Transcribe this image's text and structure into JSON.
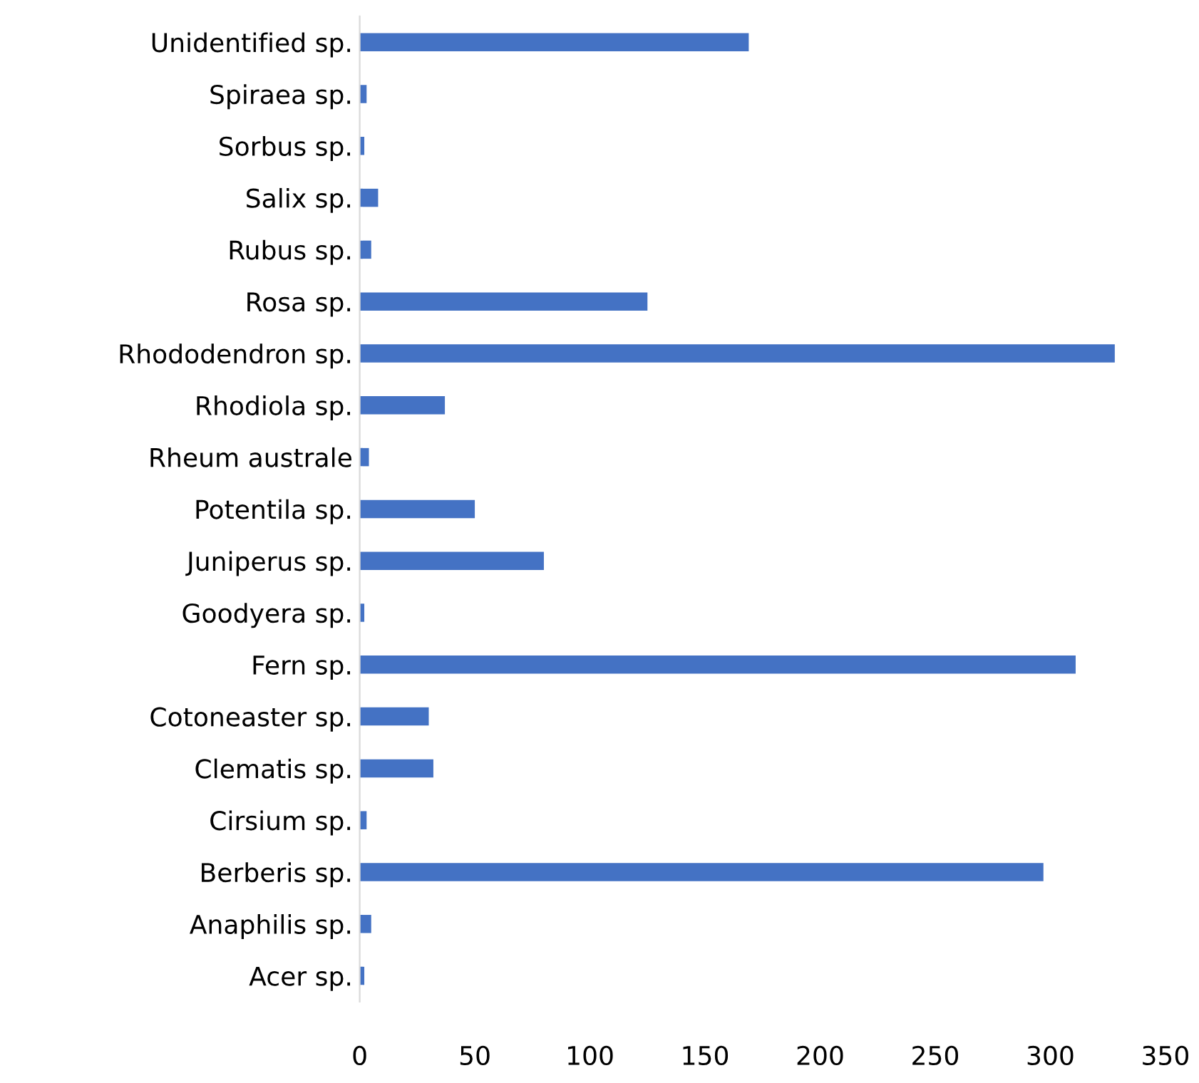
{
  "chart_data": {
    "type": "bar",
    "orientation": "horizontal",
    "categories": [
      "Unidentified sp.",
      "Spiraea sp.",
      "Sorbus sp.",
      "Salix sp.",
      "Rubus sp.",
      "Rosa sp.",
      "Rhododendron sp.",
      "Rhodiola sp.",
      "Rheum australe",
      "Potentila sp.",
      "Juniperus sp.",
      "Goodyera sp.",
      "Fern sp.",
      "Cotoneaster sp.",
      "Clematis sp.",
      "Cirsium sp.",
      "Berberis sp.",
      "Anaphilis sp.",
      "Acer sp."
    ],
    "values": [
      169,
      3,
      2,
      8,
      5,
      125,
      328,
      37,
      4,
      50,
      80,
      2,
      311,
      30,
      32,
      3,
      297,
      5,
      2
    ],
    "color": "#4472c4",
    "xlim": [
      0,
      350
    ],
    "xticks": [
      0,
      50,
      100,
      150,
      200,
      250,
      300,
      350
    ],
    "grid": false,
    "legend": false
  }
}
